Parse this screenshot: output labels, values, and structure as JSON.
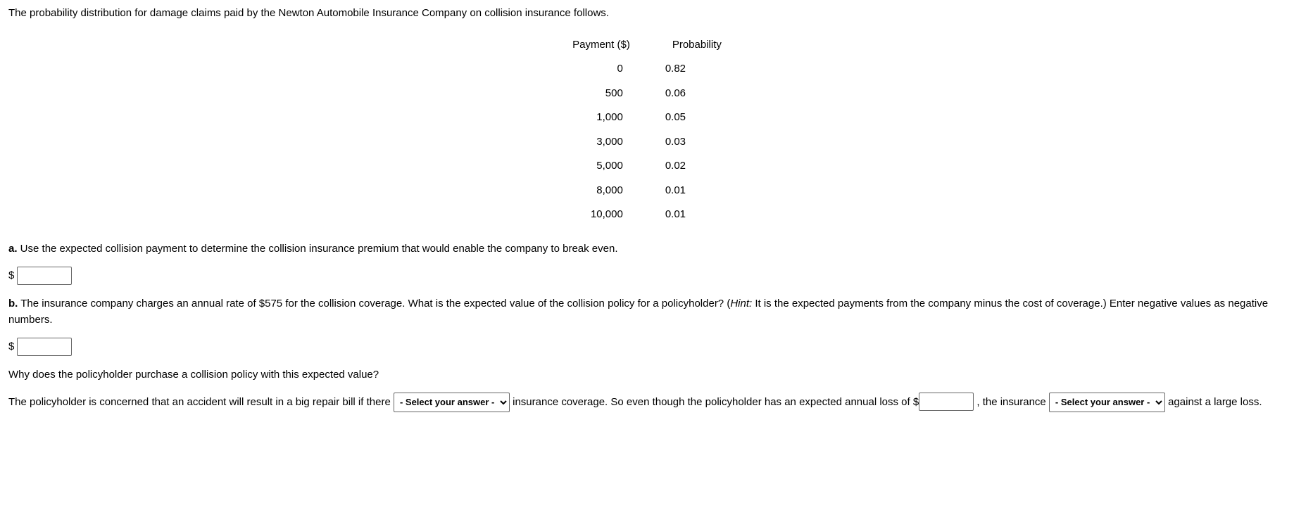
{
  "intro_text": "The probability distribution for damage claims paid by the Newton Automobile Insurance Company on collision insurance follows.",
  "table": {
    "col_payment": "Payment ($)",
    "col_prob": "Probability",
    "rows": [
      {
        "payment": "0",
        "prob": "0.82"
      },
      {
        "payment": "500",
        "prob": "0.06"
      },
      {
        "payment": "1,000",
        "prob": "0.05"
      },
      {
        "payment": "3,000",
        "prob": "0.03"
      },
      {
        "payment": "5,000",
        "prob": "0.02"
      },
      {
        "payment": "8,000",
        "prob": "0.01"
      },
      {
        "payment": "10,000",
        "prob": "0.01"
      }
    ]
  },
  "part_a": {
    "label": "a.",
    "text": " Use the expected collision payment to determine the collision insurance premium that would enable the company to break even.",
    "currency": "$"
  },
  "part_b": {
    "label": "b.",
    "seg1": " The insurance company charges an annual rate of $575 for the collision coverage. What is the expected value of the collision policy for a policyholder? (",
    "hint_label": "Hint:",
    "seg2": " It is the expected payments from the company minus the cost of coverage.) Enter negative values as negative numbers.",
    "currency": "$",
    "followup_q": "Why does the policyholder purchase a collision policy with this expected value?",
    "flow1": "The policyholder is concerned that an accident will result in a big repair bill if there ",
    "flow2": " insurance coverage. So even though the policyholder has an expected annual loss of $",
    "flow3": " , the insurance ",
    "flow4": " against a large loss."
  },
  "select_placeholder": "- Select your answer -"
}
